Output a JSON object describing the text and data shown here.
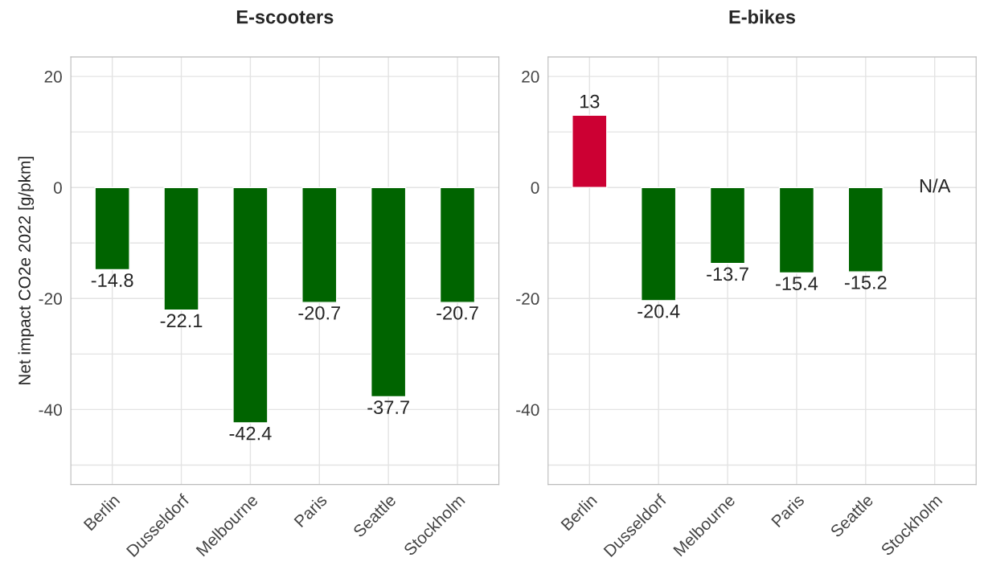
{
  "chart_data": [
    {
      "type": "bar",
      "title": "E-scooters",
      "ylabel": "Net impact CO2e 2022 [g/pkm]",
      "categories": [
        "Berlin",
        "Dusseldorf",
        "Melbourne",
        "Paris",
        "Seattle",
        "Stockholm"
      ],
      "values": [
        -14.8,
        -22.1,
        -42.4,
        -20.7,
        -37.7,
        -20.7
      ],
      "colors": [
        "#006400",
        "#006400",
        "#006400",
        "#006400",
        "#006400",
        "#006400"
      ],
      "ylim": [
        -53.5,
        23.5
      ],
      "yticks": [
        {
          "value": -50,
          "label": null
        },
        -40,
        {
          "value": -30,
          "label": null
        },
        -20,
        {
          "value": -10,
          "label": null
        },
        0,
        {
          "value": 10,
          "label": null
        },
        20
      ],
      "grid": true,
      "data_labels": true
    },
    {
      "type": "bar",
      "title": "E-bikes",
      "categories": [
        "Berlin",
        "Dusseldorf",
        "Melbourne",
        "Paris",
        "Seattle",
        "Stockholm"
      ],
      "values": [
        13,
        -20.4,
        -13.7,
        -15.4,
        -15.2,
        null
      ],
      "colors": [
        "#cc0033",
        "#006400",
        "#006400",
        "#006400",
        "#006400",
        null
      ],
      "ylim": [
        -53.5,
        23.5
      ],
      "yticks": [
        {
          "value": -50,
          "label": null
        },
        -40,
        {
          "value": -30,
          "label": null
        },
        -20,
        {
          "value": -10,
          "label": null
        },
        0,
        {
          "value": 10,
          "label": null
        },
        20
      ],
      "grid": true,
      "data_labels": true,
      "annotations": [
        "N/A"
      ]
    }
  ]
}
